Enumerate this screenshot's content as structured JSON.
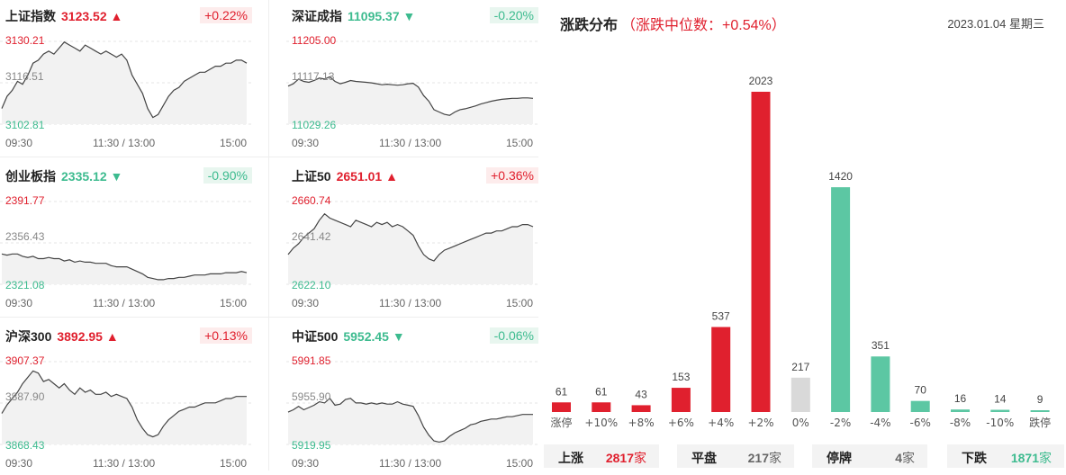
{
  "indices": [
    {
      "name": "上证指数",
      "value": "3123.52",
      "change": "+0.22%",
      "direction": "up",
      "high": "3130.21",
      "mid": "3116.51",
      "low": "3102.81",
      "series": [
        3108,
        3112,
        3114,
        3117,
        3116,
        3119,
        3123,
        3124,
        3126,
        3127,
        3126,
        3128,
        3130,
        3129,
        3128,
        3127,
        3129,
        3128,
        3127,
        3126,
        3127,
        3126,
        3125,
        3126,
        3124,
        3119,
        3116,
        3113,
        3108,
        3105,
        3106,
        3109,
        3112,
        3114,
        3115,
        3117,
        3118,
        3119,
        3120,
        3120,
        3121,
        3122,
        3122,
        3123,
        3123,
        3124,
        3124,
        3123
      ]
    },
    {
      "name": "深证成指",
      "value": "11095.37",
      "change": "-0.20%",
      "direction": "down",
      "high": "11205.00",
      "mid": "11117.13",
      "low": "11029.26",
      "series": [
        11110,
        11115,
        11125,
        11120,
        11118,
        11122,
        11127,
        11125,
        11130,
        11120,
        11115,
        11118,
        11122,
        11120,
        11119,
        11118,
        11117,
        11115,
        11113,
        11114,
        11113,
        11112,
        11113,
        11115,
        11116,
        11108,
        11090,
        11078,
        11060,
        11055,
        11050,
        11048,
        11055,
        11060,
        11062,
        11065,
        11068,
        11072,
        11075,
        11078,
        11080,
        11082,
        11083,
        11084,
        11084,
        11085,
        11085,
        11084
      ]
    },
    {
      "name": "创业板指",
      "value": "2335.12",
      "change": "-0.90%",
      "direction": "down",
      "high": "2391.77",
      "mid": "2356.43",
      "low": "2321.08",
      "series": [
        2347,
        2346,
        2347,
        2347,
        2345,
        2344,
        2345,
        2343,
        2343,
        2344,
        2343,
        2343,
        2341,
        2342,
        2340,
        2341,
        2340,
        2340,
        2339,
        2339,
        2339,
        2337,
        2336,
        2336,
        2336,
        2334,
        2332,
        2330,
        2327,
        2326,
        2325,
        2325,
        2326,
        2326,
        2327,
        2327,
        2328,
        2329,
        2329,
        2329,
        2330,
        2330,
        2330,
        2331,
        2331,
        2331,
        2332,
        2331
      ]
    },
    {
      "name": "上证50",
      "value": "2651.01",
      "change": "+0.36%",
      "direction": "up",
      "high": "2660.74",
      "mid": "2641.42",
      "low": "2622.10",
      "series": [
        2636,
        2639,
        2641,
        2644,
        2646,
        2648,
        2652,
        2655,
        2653,
        2652,
        2651,
        2650,
        2649,
        2652,
        2651,
        2650,
        2649,
        2651,
        2650,
        2651,
        2649,
        2650,
        2649,
        2647,
        2645,
        2640,
        2636,
        2634,
        2633,
        2636,
        2638,
        2639,
        2640,
        2641,
        2642,
        2643,
        2644,
        2645,
        2646,
        2646,
        2647,
        2647,
        2648,
        2649,
        2649,
        2650,
        2650,
        2649
      ]
    },
    {
      "name": "沪深300",
      "value": "3892.95",
      "change": "+0.13%",
      "direction": "up",
      "high": "3907.37",
      "mid": "3887.90",
      "low": "3868.43",
      "series": [
        3883,
        3887,
        3890,
        3893,
        3897,
        3900,
        3903,
        3902,
        3898,
        3899,
        3897,
        3895,
        3897,
        3894,
        3892,
        3895,
        3893,
        3894,
        3892,
        3892,
        3893,
        3891,
        3892,
        3891,
        3890,
        3886,
        3880,
        3876,
        3873,
        3872,
        3873,
        3877,
        3880,
        3882,
        3884,
        3885,
        3886,
        3886,
        3887,
        3888,
        3888,
        3888,
        3889,
        3890,
        3890,
        3891,
        3891,
        3891
      ]
    },
    {
      "name": "中证500",
      "value": "5952.45",
      "change": "-0.06%",
      "direction": "down",
      "high": "5991.85",
      "mid": "5955.90",
      "low": "5919.95",
      "series": [
        5948,
        5950,
        5953,
        5950,
        5952,
        5954,
        5957,
        5956,
        5960,
        5954,
        5955,
        5959,
        5960,
        5956,
        5956,
        5955,
        5956,
        5955,
        5956,
        5955,
        5955,
        5957,
        5955,
        5954,
        5953,
        5945,
        5935,
        5928,
        5923,
        5922,
        5923,
        5927,
        5930,
        5932,
        5934,
        5937,
        5938,
        5940,
        5941,
        5942,
        5942,
        5943,
        5944,
        5944,
        5945,
        5946,
        5946,
        5946
      ]
    }
  ],
  "time_labels": {
    "start": "09:30",
    "mid": "11:30 / 13:00",
    "end": "15:00"
  },
  "distribution": {
    "title": "涨跌分布",
    "subtitle": "（涨跌中位数：+0.54%）",
    "date": "2023.01.04 星期三"
  },
  "chart_data": {
    "type": "bar",
    "title": "涨跌分布",
    "subtitle": "（涨跌中位数：+0.54%）",
    "categories": [
      "涨停",
      "+10%",
      "+8%",
      "+6%",
      "+4%",
      "+2%",
      "0%",
      "-2%",
      "-4%",
      "-6%",
      "-8%",
      "-10%",
      "跌停"
    ],
    "values": [
      61,
      61,
      43,
      153,
      537,
      2023,
      217,
      1420,
      351,
      70,
      16,
      14,
      9
    ],
    "colors": [
      "#e0202e",
      "#e0202e",
      "#e0202e",
      "#e0202e",
      "#e0202e",
      "#e0202e",
      "#d9d9d9",
      "#5cc7a3",
      "#5cc7a3",
      "#5cc7a3",
      "#5cc7a3",
      "#5cc7a3",
      "#5cc7a3"
    ],
    "ylim": [
      0,
      2023
    ]
  },
  "summary": [
    {
      "label": "上涨",
      "value": "2817",
      "unit": "家",
      "color": "#e0202e"
    },
    {
      "label": "平盘",
      "value": "217",
      "unit": "家",
      "color": "#666666"
    },
    {
      "label": "停牌",
      "value": "4",
      "unit": "家",
      "color": "#666666"
    },
    {
      "label": "下跌",
      "value": "1871",
      "unit": "家",
      "color": "#3dbb8f"
    }
  ],
  "colors": {
    "up": "#e0202e",
    "down": "#3dbb8f",
    "flat": "#d9d9d9"
  }
}
